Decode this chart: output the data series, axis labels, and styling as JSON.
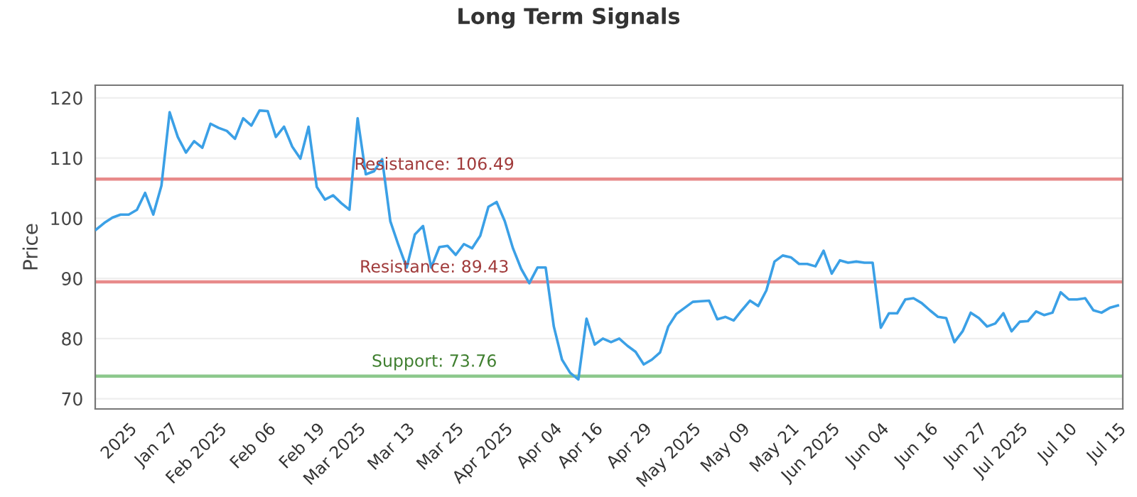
{
  "chart_data": {
    "type": "line",
    "title": "Long Term Signals",
    "ylabel": "Price",
    "categories": [
      null,
      null,
      null,
      null,
      "2025",
      null,
      null,
      null,
      null,
      "Jan 27",
      null,
      null,
      null,
      null,
      null,
      "Feb 2025",
      null,
      null,
      null,
      null,
      null,
      "Feb 06",
      null,
      null,
      null,
      null,
      null,
      "Feb 19",
      null,
      null,
      null,
      null,
      "Mar 2025",
      null,
      null,
      null,
      null,
      null,
      "Mar 13",
      null,
      null,
      null,
      null,
      null,
      "Mar 25",
      null,
      null,
      null,
      null,
      null,
      "Apr 2025",
      null,
      null,
      null,
      null,
      null,
      "Apr 04",
      null,
      null,
      null,
      null,
      "Apr 16",
      null,
      null,
      null,
      null,
      null,
      "Apr 29",
      null,
      null,
      null,
      null,
      null,
      "May 2025",
      null,
      null,
      null,
      null,
      null,
      "May 09",
      null,
      null,
      null,
      null,
      null,
      "May 21",
      null,
      null,
      null,
      null,
      "Jun 2025",
      null,
      null,
      null,
      null,
      null,
      "Jun 04",
      null,
      null,
      null,
      null,
      null,
      "Jun 16",
      null,
      null,
      null,
      null,
      null,
      "Jun 27",
      null,
      null,
      null,
      null,
      "Jul 2025",
      null,
      null,
      null,
      null,
      null,
      "Jul 10",
      null,
      null,
      null,
      null,
      null,
      "Jul 15"
    ],
    "series": [
      {
        "color": "#3ba0e6",
        "values": [
          98.1,
          99.2,
          100.1,
          100.6,
          100.6,
          101.4,
          104.2,
          100.6,
          105.4,
          117.6,
          113.5,
          110.9,
          112.8,
          111.7,
          115.7,
          115.0,
          114.5,
          113.2,
          116.6,
          115.4,
          117.9,
          117.8,
          113.5,
          115.2,
          111.9,
          109.9,
          115.2,
          105.2,
          103.1,
          103.8,
          102.5,
          101.4,
          116.6,
          107.3,
          107.8,
          109.8,
          99.5,
          95.5,
          91.8,
          97.3,
          98.7,
          91.8,
          95.2,
          95.4,
          93.9,
          95.7,
          95.0,
          97.1,
          101.9,
          102.7,
          99.5,
          95.0,
          91.6,
          89.2,
          91.8,
          91.8,
          82.0,
          76.5,
          74.3,
          73.2,
          83.3,
          79.0,
          80.0,
          79.4,
          80.0,
          78.8,
          77.8,
          75.7,
          76.5,
          77.7,
          82.0,
          84.1,
          85.1,
          86.1,
          86.2,
          86.3,
          83.2,
          83.6,
          83.0,
          84.7,
          86.3,
          85.4,
          88.0,
          92.8,
          93.8,
          93.5,
          92.4,
          92.4,
          92.0,
          94.6,
          90.8,
          93.0,
          92.6,
          92.8,
          92.6,
          92.6,
          81.8,
          84.2,
          84.2,
          86.5,
          86.7,
          85.9,
          84.7,
          83.6,
          83.4,
          79.4,
          81.2,
          84.3,
          83.4,
          82.0,
          82.5,
          84.2,
          81.2,
          82.8,
          82.9,
          84.5,
          83.9,
          84.3,
          87.7,
          86.5,
          86.5,
          86.7,
          84.7,
          84.3,
          85.1,
          85.5
        ]
      }
    ],
    "ylim": [
      68.3,
      122.1
    ],
    "yticks": [
      70,
      80,
      90,
      100,
      110,
      120
    ],
    "grid": "y",
    "legend": false,
    "marker": "none",
    "line_style": "solid",
    "ref_lines": [
      {
        "axis": "y",
        "value": 106.49,
        "label": "Resistance: 106.49",
        "color": "#e88a8a"
      },
      {
        "axis": "y",
        "value": 89.43,
        "label": "Resistance: 89.43",
        "color": "#e88a8a"
      },
      {
        "axis": "y",
        "value": 73.76,
        "label": "Support: 73.76",
        "color": "#8cc88c"
      }
    ]
  }
}
